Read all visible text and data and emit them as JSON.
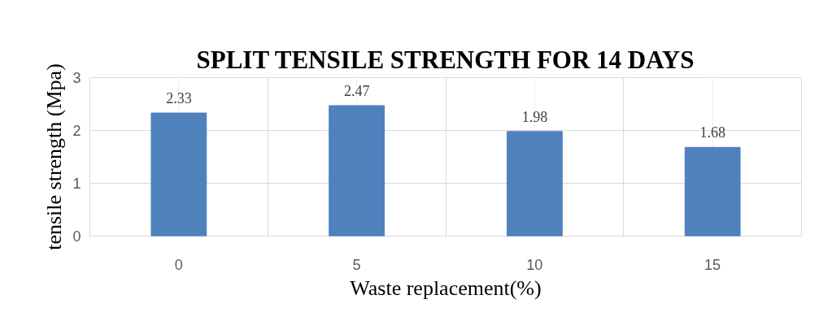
{
  "chart_data": {
    "type": "bar",
    "title": "SPLIT TENSILE STRENGTH FOR 14 DAYS",
    "xlabel": "Waste replacement(%)",
    "ylabel": "tensile strength (Mpa)",
    "categories": [
      "0",
      "5",
      "10",
      "15"
    ],
    "values": [
      2.33,
      2.47,
      1.98,
      1.68
    ],
    "color": "#4f81bd",
    "ylim": [
      0,
      3
    ],
    "yticks": [
      0,
      1,
      2,
      3
    ],
    "grid": true,
    "data_labels": true
  }
}
